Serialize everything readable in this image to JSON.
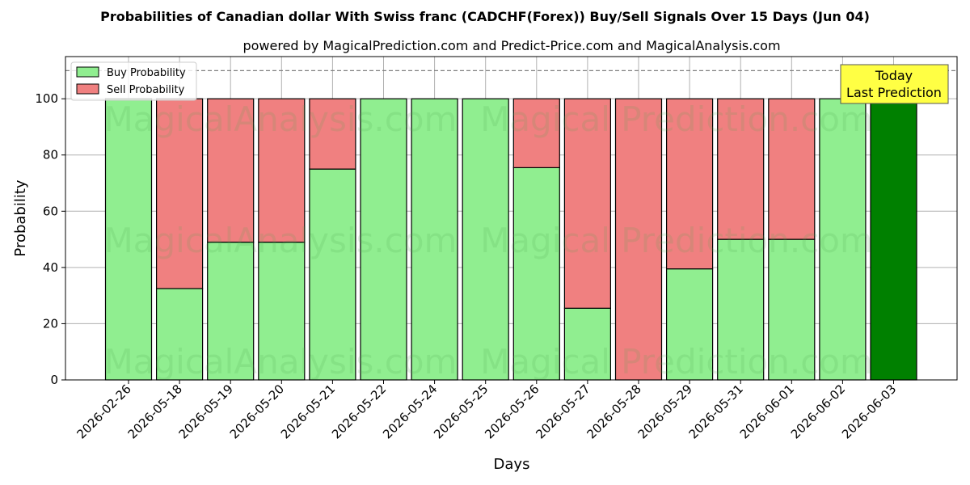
{
  "chart_data": {
    "type": "bar",
    "stacked": true,
    "title": "Probabilities of Canadian dollar With Swiss franc (CADCHF(Forex)) Buy/Sell Signals Over 15 Days (Jun 04)",
    "subtitle": "powered by MagicalPrediction.com and Predict-Price.com and MagicalAnalysis.com",
    "xlabel": "Days",
    "ylabel": "Probability",
    "ylim": [
      0,
      115
    ],
    "yticks": [
      0,
      20,
      40,
      60,
      80,
      100
    ],
    "grid": true,
    "legend_position": "top-left",
    "categories": [
      "2026-02-26",
      "2026-05-18",
      "2026-05-19",
      "2026-05-20",
      "2026-05-21",
      "2026-05-22",
      "2026-05-24",
      "2026-05-25",
      "2026-05-26",
      "2026-05-27",
      "2026-05-28",
      "2026-05-29",
      "2026-05-31",
      "2026-06-01",
      "2026-06-02",
      "2026-06-03"
    ],
    "series": [
      {
        "name": "Buy Probability",
        "color": "#90ee90",
        "values": [
          100,
          32.5,
          49,
          49,
          75,
          100,
          100,
          100,
          75.5,
          25.5,
          0,
          39.5,
          50,
          50,
          100,
          100
        ]
      },
      {
        "name": "Sell Probability",
        "color": "#f08080",
        "values": [
          0,
          67.5,
          51,
          51,
          25,
          0,
          0,
          0,
          24.5,
          74.5,
          100,
          60.5,
          50,
          50,
          0,
          0
        ]
      }
    ],
    "highlight": {
      "index": 15,
      "color": "#008000"
    },
    "reference_line": {
      "y": 110,
      "style": "dashed"
    },
    "annotation": {
      "line1": "Today",
      "line2": "Last Prediction",
      "background": "#ffff44"
    },
    "watermarks": [
      "MagicalAnalysis.com",
      "Magical Prediction.com"
    ]
  }
}
